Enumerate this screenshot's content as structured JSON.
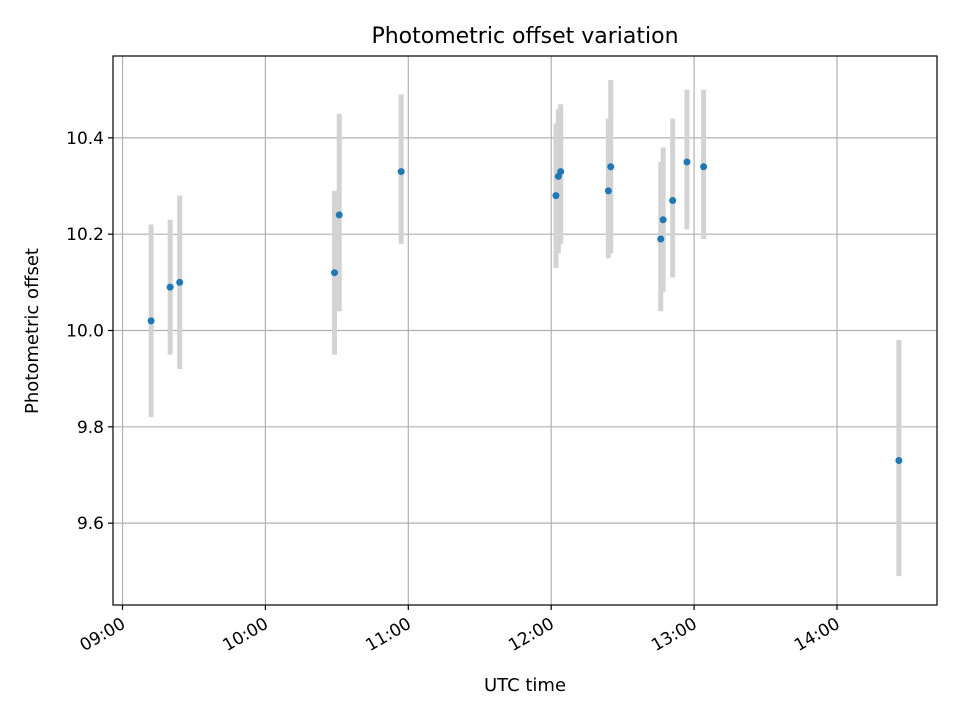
{
  "chart_data": {
    "type": "scatter",
    "title": "Photometric offset variation",
    "xlabel": "UTC time",
    "ylabel": "Photometric offset",
    "x_ticks": [
      "09:00",
      "10:00",
      "11:00",
      "12:00",
      "13:00",
      "14:00"
    ],
    "y_ticks": [
      "9.6",
      "9.8",
      "10.0",
      "10.2",
      "10.4"
    ],
    "xlim": [
      "08:56",
      "14:42"
    ],
    "ylim": [
      9.43,
      10.57
    ],
    "grid": true,
    "errorbar_color": "#d3d3d3",
    "point_color": "#1f77b4",
    "points": [
      {
        "x": "09:12",
        "y": 10.02,
        "yerr_low": 9.82,
        "yerr_high": 10.22
      },
      {
        "x": "09:20",
        "y": 10.09,
        "yerr_low": 9.95,
        "yerr_high": 10.23
      },
      {
        "x": "09:24",
        "y": 10.1,
        "yerr_low": 9.92,
        "yerr_high": 10.28
      },
      {
        "x": "10:29",
        "y": 10.12,
        "yerr_low": 9.95,
        "yerr_high": 10.29
      },
      {
        "x": "10:31",
        "y": 10.24,
        "yerr_low": 10.04,
        "yerr_high": 10.45
      },
      {
        "x": "10:57",
        "y": 10.33,
        "yerr_low": 10.18,
        "yerr_high": 10.49
      },
      {
        "x": "12:02",
        "y": 10.28,
        "yerr_low": 10.13,
        "yerr_high": 10.43
      },
      {
        "x": "12:03",
        "y": 10.32,
        "yerr_low": 10.16,
        "yerr_high": 10.46
      },
      {
        "x": "12:04",
        "y": 10.33,
        "yerr_low": 10.18,
        "yerr_high": 10.47
      },
      {
        "x": "12:24",
        "y": 10.29,
        "yerr_low": 10.15,
        "yerr_high": 10.44
      },
      {
        "x": "12:25",
        "y": 10.34,
        "yerr_low": 10.16,
        "yerr_high": 10.52
      },
      {
        "x": "12:46",
        "y": 10.19,
        "yerr_low": 10.04,
        "yerr_high": 10.35
      },
      {
        "x": "12:47",
        "y": 10.23,
        "yerr_low": 10.08,
        "yerr_high": 10.38
      },
      {
        "x": "12:51",
        "y": 10.27,
        "yerr_low": 10.11,
        "yerr_high": 10.44
      },
      {
        "x": "12:57",
        "y": 10.35,
        "yerr_low": 10.21,
        "yerr_high": 10.5
      },
      {
        "x": "13:04",
        "y": 10.34,
        "yerr_low": 10.19,
        "yerr_high": 10.5
      },
      {
        "x": "14:26",
        "y": 9.73,
        "yerr_low": 9.49,
        "yerr_high": 9.98
      }
    ]
  }
}
